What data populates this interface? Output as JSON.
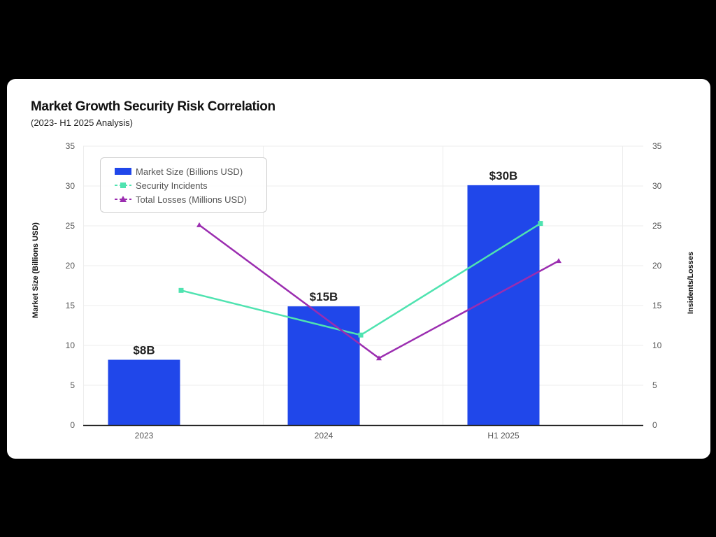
{
  "chart_data": {
    "type": "bar",
    "title": "Market Growth Security Risk Correlation",
    "subtitle": "(2023- H1 2025 Analysis)",
    "categories": [
      "2023",
      "2024",
      "H1 2025"
    ],
    "series": [
      {
        "name": "Market Size (Billions USD)",
        "type": "bar",
        "axis": "left",
        "values": [
          8.2,
          14.9,
          30.1
        ],
        "data_labels": [
          "$8B",
          "$15B",
          "$30B"
        ],
        "color": "#2047ea"
      },
      {
        "name": "Security Incidents",
        "type": "line",
        "axis": "right",
        "marker": "square",
        "values": [
          16.9,
          11.3,
          25.3
        ],
        "color": "#4fe3b0"
      },
      {
        "name": "Total Losses (Millions USD)",
        "type": "line",
        "axis": "right",
        "marker": "triangle",
        "values": [
          25.1,
          8.4,
          20.6
        ],
        "color": "#9b2db0"
      }
    ],
    "ylabel": "Market Size (Billions USD)",
    "y2label": "Insidents/Losses",
    "ylim": [
      0,
      35
    ],
    "y2lim": [
      0,
      35
    ],
    "yticks": [
      "0",
      "5",
      "10",
      "15",
      "20",
      "25",
      "30",
      "35"
    ],
    "y2ticks": [
      "0",
      "5",
      "10",
      "15",
      "20",
      "25",
      "30",
      "35"
    ],
    "grid": true,
    "legend_position": "top-left"
  }
}
